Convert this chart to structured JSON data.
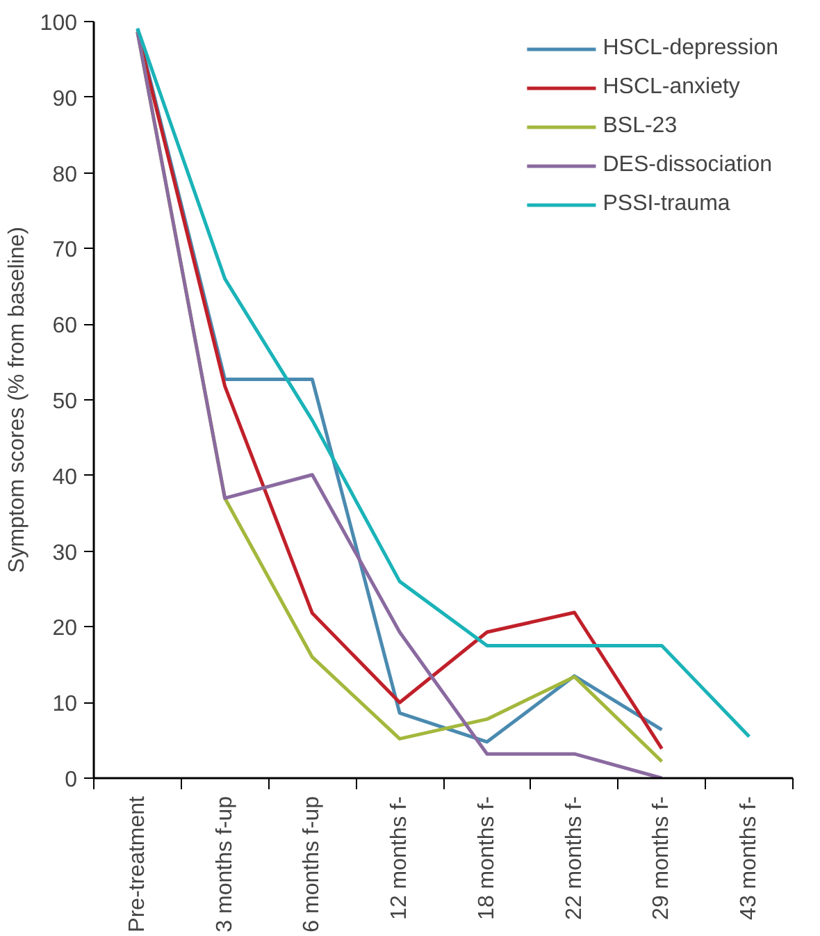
{
  "chart_data": {
    "type": "line",
    "ylabel": "Symptom scores (% from baseline)",
    "categories": [
      "Pre-treatment",
      "3 months f-up",
      "6 months f-up",
      "12 months f-",
      "18 months f-",
      "22 months f-",
      "29 months f-",
      "43 months f-"
    ],
    "ylim": [
      0,
      100
    ],
    "yticks": [
      0,
      10,
      20,
      30,
      40,
      50,
      60,
      70,
      80,
      90,
      100
    ],
    "grid": false,
    "legend": "top right",
    "marker": "none",
    "line_style": "solid",
    "series": [
      {
        "name": "HSCL-depression",
        "color": "#4a8ab0",
        "values": [
          99,
          52.7,
          52.7,
          8.6,
          4.8,
          13.5,
          6.4,
          null
        ]
      },
      {
        "name": "HSCL-anxiety",
        "color": "#c0202a",
        "values": [
          98.6,
          51.8,
          21.8,
          10.0,
          19.3,
          21.9,
          3.9,
          null
        ]
      },
      {
        "name": "BSL-23",
        "color": "#a3b83c",
        "values": [
          98.6,
          37.0,
          16.0,
          5.2,
          7.8,
          13.4,
          2.2,
          null
        ]
      },
      {
        "name": "DES-dissociation",
        "color": "#8a6aa0",
        "values": [
          98.6,
          37.0,
          40.1,
          19.3,
          3.2,
          3.2,
          0,
          null
        ]
      },
      {
        "name": "PSSI-trauma",
        "color": "#1ab3b8",
        "values": [
          99.1,
          66.0,
          47.3,
          26.0,
          17.5,
          17.5,
          17.5,
          5.5
        ]
      }
    ]
  }
}
